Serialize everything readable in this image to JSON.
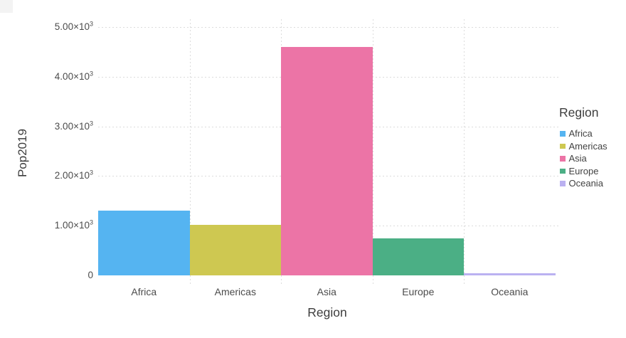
{
  "chart_data": {
    "type": "bar",
    "title": "",
    "xlabel": "Region",
    "ylabel": "Pop2019",
    "categories": [
      "Africa",
      "Americas",
      "Asia",
      "Europe",
      "Oceania"
    ],
    "values": [
      1308,
      1014,
      4601,
      747,
      42
    ],
    "ylim": [
      0,
      5000
    ],
    "yticks": [
      {
        "value": 0,
        "base": "0",
        "exp": ""
      },
      {
        "value": 1000,
        "base": "1.00×10",
        "exp": "3"
      },
      {
        "value": 2000,
        "base": "2.00×10",
        "exp": "3"
      },
      {
        "value": 3000,
        "base": "3.00×10",
        "exp": "3"
      },
      {
        "value": 4000,
        "base": "4.00×10",
        "exp": "3"
      },
      {
        "value": 5000,
        "base": "5.00×10",
        "exp": "3"
      }
    ],
    "grid": "dotted",
    "gridline_color": "#dcdcdc",
    "background": "#ffffff",
    "legend_position": "right",
    "legend": {
      "title": "Region",
      "entries": [
        {
          "label": "Africa",
          "color": "#55b4f1"
        },
        {
          "label": "Americas",
          "color": "#cec851"
        },
        {
          "label": "Asia",
          "color": "#ec74a6"
        },
        {
          "label": "Europe",
          "color": "#4baf85"
        },
        {
          "label": "Oceania",
          "color": "#bbb1f1"
        }
      ]
    }
  }
}
